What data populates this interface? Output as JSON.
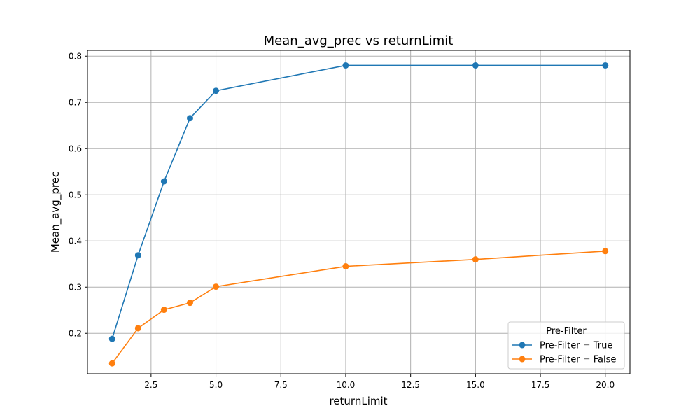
{
  "chart_data": {
    "type": "line",
    "title": "Mean_avg_prec vs returnLimit",
    "xlabel": "returnLimit",
    "ylabel": "Mean_avg_prec",
    "xlim": [
      0.05,
      20.95
    ],
    "ylim": [
      0.1125,
      0.8125
    ],
    "x_ticks": [
      2.5,
      5.0,
      7.5,
      10.0,
      12.5,
      15.0,
      17.5,
      20.0
    ],
    "x_tick_labels": [
      "2.5",
      "5.0",
      "7.5",
      "10.0",
      "12.5",
      "15.0",
      "17.5",
      "20.0"
    ],
    "y_ticks": [
      0.2,
      0.3,
      0.4,
      0.5,
      0.6,
      0.7,
      0.8
    ],
    "y_tick_labels": [
      "0.2",
      "0.3",
      "0.4",
      "0.5",
      "0.6",
      "0.7",
      "0.8"
    ],
    "grid": true,
    "legend": {
      "title": "Pre-Filter",
      "position": "lower-right"
    },
    "x": [
      1,
      2,
      3,
      4,
      5,
      10,
      15,
      20
    ],
    "series": [
      {
        "name": "Pre-Filter = True",
        "color": "#1f77b4",
        "values": [
          0.188,
          0.369,
          0.529,
          0.666,
          0.725,
          0.78,
          0.78,
          0.78
        ]
      },
      {
        "name": "Pre-Filter = False",
        "color": "#ff7f0e",
        "values": [
          0.135,
          0.211,
          0.251,
          0.266,
          0.301,
          0.345,
          0.36,
          0.378
        ]
      }
    ]
  }
}
